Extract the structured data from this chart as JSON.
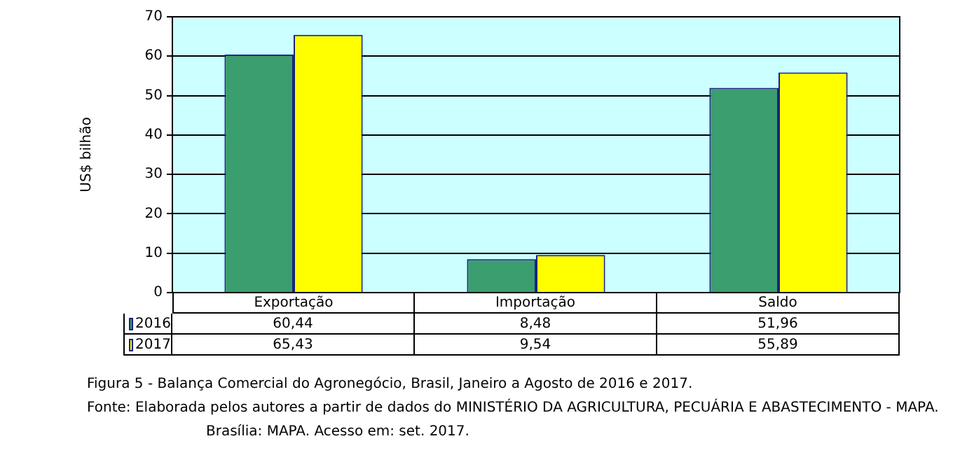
{
  "chart_data": {
    "type": "bar",
    "title": "Figura 5 - Balança Comercial do Agronegócio, Brasil, Janeiro a Agosto de 2016 e 2017.",
    "ylabel": "US$ bilhão",
    "categories": [
      "Exportação",
      "Importação",
      "Saldo"
    ],
    "series": [
      {
        "name": "2016",
        "color": "#3a9e6e",
        "values": [
          60.44,
          8.48,
          51.96
        ],
        "value_labels": [
          "60,44",
          "8,48",
          "51,96"
        ]
      },
      {
        "name": "2017",
        "color": "#ffff00",
        "values": [
          65.43,
          9.54,
          55.89
        ],
        "value_labels": [
          "65,43",
          "9,54",
          "55,89"
        ]
      }
    ],
    "ylim": [
      0,
      70
    ],
    "yticks": [
      0,
      10,
      20,
      30,
      40,
      50,
      60,
      70
    ],
    "grid": "y",
    "legend": "bottom",
    "annotations": [
      "Fonte: Elaborada pelos autores a partir de dados do MINISTÉRIO DA AGRICULTURA, PECUÁRIA E ABASTECIMENTO - MAPA.",
      "Brasília: MAPA. Acesso em: set. 2017."
    ]
  }
}
